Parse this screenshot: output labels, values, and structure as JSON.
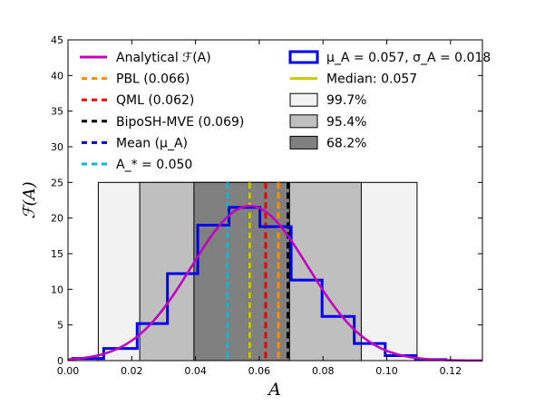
{
  "chart_data": {
    "type": "histogram",
    "xlabel": "A",
    "ylabel": "ℱ(A)",
    "xlim": [
      0.0,
      0.13
    ],
    "ylim": [
      0,
      45
    ],
    "xticks": [
      "0.00",
      "0.02",
      "0.04",
      "0.06",
      "0.08",
      "0.10",
      "0.12"
    ],
    "xtick_values": [
      0.0,
      0.02,
      0.04,
      0.06,
      0.08,
      0.1,
      0.12
    ],
    "yticks": [
      "0",
      "5",
      "10",
      "15",
      "20",
      "25",
      "30",
      "35",
      "40",
      "45"
    ],
    "ytick_values": [
      0,
      5,
      10,
      15,
      20,
      25,
      30,
      35,
      40,
      45
    ],
    "grid": false,
    "legend_placement": "top",
    "histogram": {
      "label": "μ_A = 0.057, σ_A = 0.018",
      "color": "#0000ee",
      "bin_edges": [
        0.0015,
        0.0112,
        0.0217,
        0.0312,
        0.0407,
        0.0505,
        0.0602,
        0.07,
        0.0797,
        0.0898,
        0.0995,
        0.109,
        0.1185
      ],
      "values": [
        0.3,
        1.7,
        5.2,
        12.2,
        19.0,
        21.5,
        18.8,
        11.3,
        6.2,
        2.4,
        0.7,
        0.15
      ]
    },
    "analytical_curve": {
      "label": "Analytical ℱ(A)",
      "color": "#bf00bf",
      "mu": 0.057,
      "sigma": 0.0183,
      "amplitude": 21.7
    },
    "confidence_bands": [
      {
        "label": "99.7%",
        "x0": 0.0095,
        "x1": 0.1095,
        "color": "#f2f2f2"
      },
      {
        "label": "95.4%",
        "x0": 0.0225,
        "x1": 0.092,
        "color": "#bfbfbf"
      },
      {
        "label": "68.2%",
        "x0": 0.0395,
        "x1": 0.0695,
        "color": "#808080"
      }
    ],
    "band_height": 25,
    "vertical_lines": [
      {
        "label": "PBL (0.066)",
        "x": 0.066,
        "color": "#ff8c00"
      },
      {
        "label": "QML (0.062)",
        "x": 0.062,
        "color": "#ee0000"
      },
      {
        "label": "BipoSH-MVE (0.069)",
        "x": 0.069,
        "color": "#000000"
      },
      {
        "label": "Mean (μ_A)",
        "x": 0.057,
        "color": "#0000cc"
      },
      {
        "label": "A_* = 0.050",
        "x": 0.05,
        "color": "#00bcd4"
      },
      {
        "label": "Median: 0.057",
        "x": 0.057,
        "color": "#c8c800"
      }
    ],
    "legend_left": [
      {
        "kind": "solid",
        "color": "#bf00bf",
        "text": "Analytical ℱ(A)"
      },
      {
        "kind": "dash",
        "color": "#ff8c00",
        "text": "PBL (0.066)"
      },
      {
        "kind": "dash",
        "color": "#ee0000",
        "text": "QML (0.062)"
      },
      {
        "kind": "dash",
        "color": "#000000",
        "text": "BipoSH-MVE (0.069)"
      },
      {
        "kind": "dash",
        "color": "#0000cc",
        "text": "Mean (μ_A)"
      },
      {
        "kind": "dash",
        "color": "#00bcd4",
        "text": "A_* = 0.050"
      }
    ],
    "legend_right": [
      {
        "kind": "box",
        "color": "#ffffff",
        "edge": "#0000ee",
        "text": "μ_A = 0.057, σ_A = 0.018"
      },
      {
        "kind": "solid",
        "color": "#c8c800",
        "text": "Median: 0.057"
      },
      {
        "kind": "patch",
        "color": "#f2f2f2",
        "text": "99.7%"
      },
      {
        "kind": "patch",
        "color": "#bfbfbf",
        "text": "95.4%"
      },
      {
        "kind": "patch",
        "color": "#808080",
        "text": "68.2%"
      }
    ]
  }
}
